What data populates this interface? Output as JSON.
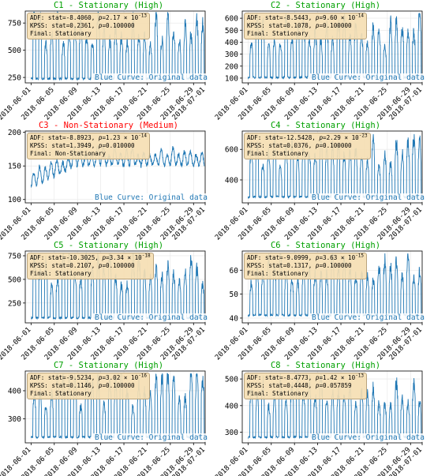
{
  "colors": {
    "series": "#1f77b4",
    "stationary_title": "#00a000",
    "nonstationary_title": "#ff0000",
    "statbox_bg": "#f5deb3"
  },
  "x_tick_labels": [
    "2018-06-01",
    "2018-06-05",
    "2018-06-09",
    "2018-06-13",
    "2018-06-17",
    "2018-06-21",
    "2018-06-25",
    "2018-06-29",
    "2018-07-01"
  ],
  "curve_label": "Blue Curve: Original data",
  "chart_data": [
    {
      "type": "line",
      "id": "C1",
      "title": "C1 - Stationary (High)",
      "title_color": "#00a000",
      "xlim": [
        "2018-05-31",
        "2018-07-01"
      ],
      "ylim": [
        200,
        860
      ],
      "y_ticks": [
        250,
        500,
        750
      ],
      "stats": {
        "adf_stat": "ADF: stat=-8.4060, ",
        "adf_p_base": "2.17",
        "adf_p_exp": "-13",
        "kpss_stat": "KPSS: stat=0.2361, ",
        "kpss_p": "0.100000",
        "final": "Final: Stationary"
      },
      "x_range": [
        "2018-06-01",
        "2018-06-30"
      ],
      "y_range": [
        210,
        850
      ]
    },
    {
      "type": "line",
      "id": "C2",
      "title": "C2 - Stationary (High)",
      "title_color": "#00a000",
      "xlim": [
        "2018-05-31",
        "2018-07-01"
      ],
      "ylim": [
        60,
        660
      ],
      "y_ticks": [
        100,
        200,
        300,
        400,
        500,
        600
      ],
      "stats": {
        "adf_stat": "ADF: stat=-8.5443, ",
        "adf_p_base": "9.60",
        "adf_p_exp": "-14",
        "kpss_stat": "KPSS: stat=0.1078, ",
        "kpss_p": "0.100000",
        "final": "Final: Stationary"
      },
      "x_range": [
        "2018-06-01",
        "2018-06-30"
      ],
      "y_range": [
        80,
        640
      ]
    },
    {
      "type": "line",
      "id": "C3",
      "title": "C3 - Non-Stationary (Medium)",
      "title_color": "#ff0000",
      "xlim": [
        "2018-05-31",
        "2018-07-01"
      ],
      "ylim": [
        95,
        202
      ],
      "y_ticks": [
        100,
        150,
        200
      ],
      "stats": {
        "adf_stat": "ADF: stat=-8.8923, ",
        "adf_p_base": "1.23",
        "adf_p_exp": "-14",
        "kpss_stat": "KPSS: stat=1.3949, ",
        "kpss_p": "0.010000",
        "final": "Final: Non-Stationary"
      },
      "x_range": [
        "2018-06-01",
        "2018-06-30"
      ],
      "y_range": [
        100,
        195
      ]
    },
    {
      "type": "line",
      "id": "C4",
      "title": "C4 - Stationary (High)",
      "title_color": "#00a000",
      "xlim": [
        "2018-05-31",
        "2018-07-01"
      ],
      "ylim": [
        250,
        720
      ],
      "y_ticks": [
        400,
        600
      ],
      "stats": {
        "adf_stat": "ADF: stat=-12.5428, ",
        "adf_p_base": "2.29",
        "adf_p_exp": "-23",
        "kpss_stat": "KPSS: stat=0.0376, ",
        "kpss_p": "0.100000",
        "final": "Final: Stationary"
      },
      "x_range": [
        "2018-06-01",
        "2018-06-30"
      ],
      "y_range": [
        270,
        700
      ]
    },
    {
      "type": "line",
      "id": "C5",
      "title": "C5 - Stationary (High)",
      "title_color": "#00a000",
      "xlim": [
        "2018-05-31",
        "2018-07-01"
      ],
      "ylim": [
        40,
        800
      ],
      "y_ticks": [
        250,
        500,
        750
      ],
      "stats": {
        "adf_stat": "ADF: stat=-10.3025, ",
        "adf_p_base": "3.34",
        "adf_p_exp": "-18",
        "kpss_stat": "KPSS: stat=0.2107, ",
        "kpss_p": "0.100000",
        "final": "Final: Stationary"
      },
      "x_range": [
        "2018-06-01",
        "2018-06-30"
      ],
      "y_range": [
        60,
        780
      ]
    },
    {
      "type": "line",
      "id": "C6",
      "title": "C6 - Stationary (High)",
      "title_color": "#00a000",
      "xlim": [
        "2018-05-31",
        "2018-07-01"
      ],
      "ylim": [
        38,
        68
      ],
      "y_ticks": [
        40,
        50,
        60
      ],
      "stats": {
        "adf_stat": "ADF: stat=-9.0999, ",
        "adf_p_base": "3.63",
        "adf_p_exp": "-15",
        "kpss_stat": "KPSS: stat=0.1317, ",
        "kpss_p": "0.100000",
        "final": "Final: Stationary"
      },
      "x_range": [
        "2018-06-01",
        "2018-06-30"
      ],
      "y_range": [
        40,
        67
      ]
    },
    {
      "type": "line",
      "id": "C7",
      "title": "C7 - Stationary (High)",
      "title_color": "#00a000",
      "xlim": [
        "2018-05-31",
        "2018-07-01"
      ],
      "ylim": [
        215,
        470
      ],
      "y_ticks": [
        300,
        400
      ],
      "stats": {
        "adf_stat": "ADF: stat=-9.5234, ",
        "adf_p_base": "3.02",
        "adf_p_exp": "-16",
        "kpss_stat": "KPSS: stat=0.1146, ",
        "kpss_p": "0.100000",
        "final": "Final: Stationary"
      },
      "x_range": [
        "2018-06-01",
        "2018-06-30"
      ],
      "y_range": [
        225,
        460
      ]
    },
    {
      "type": "line",
      "id": "C8",
      "title": "C8 - Stationary (High)",
      "title_color": "#00a000",
      "xlim": [
        "2018-05-31",
        "2018-07-01"
      ],
      "ylim": [
        260,
        530
      ],
      "y_ticks": [
        300,
        400,
        500
      ],
      "stats": {
        "adf_stat": "ADF: stat=-8.4773, ",
        "adf_p_base": "1.42",
        "adf_p_exp": "-13",
        "kpss_stat": "KPSS: stat=0.4448, ",
        "kpss_p": "0.057859",
        "final": "Final: Stationary"
      },
      "x_range": [
        "2018-06-01",
        "2018-06-30"
      ],
      "y_range": [
        270,
        520
      ]
    }
  ]
}
